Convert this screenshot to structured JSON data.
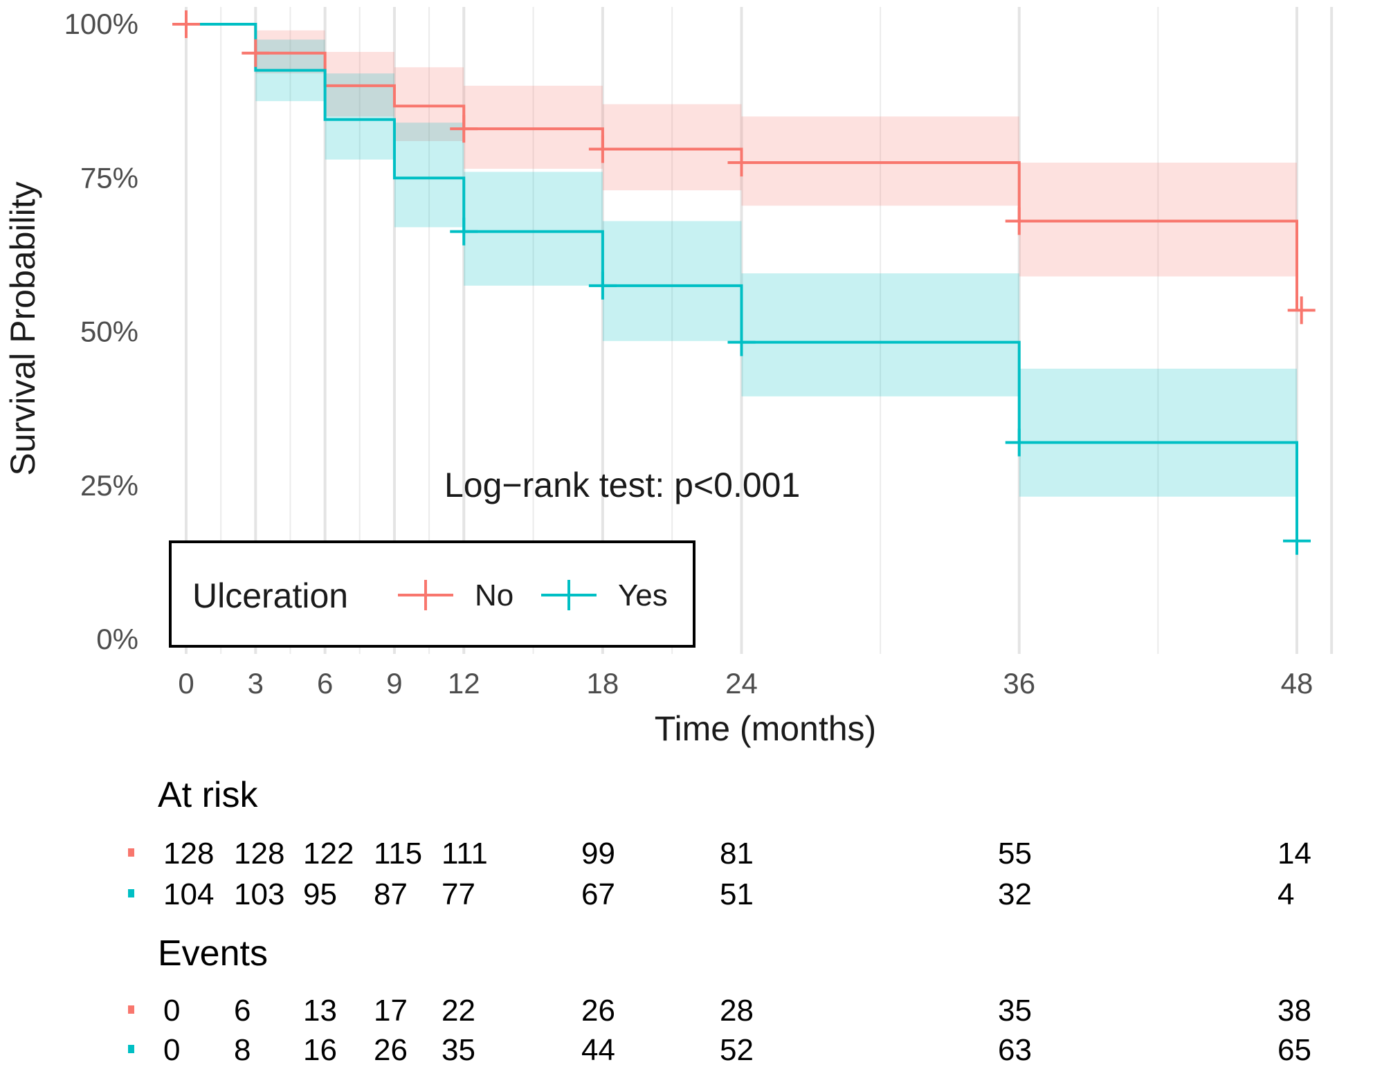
{
  "chart_data": {
    "type": "line",
    "subtype": "kaplan-meier",
    "xlabel": "Time (months)",
    "ylabel": "Survival Probability",
    "xlim": [
      0,
      48
    ],
    "ylim": [
      0,
      1
    ],
    "x_ticks": [
      0,
      3,
      6,
      9,
      12,
      18,
      24,
      36,
      48
    ],
    "y_ticks": [
      0,
      0.25,
      0.5,
      0.75,
      1.0
    ],
    "y_tick_labels": [
      "0%",
      "25%",
      "50%",
      "75%",
      "100%"
    ],
    "annotation": "Log−rank test: p<0.001",
    "legend": {
      "title": "Ulceration",
      "position": "bottom-left"
    },
    "series": [
      {
        "name": "No",
        "color": "#F8766D",
        "band_color": "#FFDCDC",
        "steps": [
          {
            "t0": 0,
            "t1": 3,
            "s": 1.0,
            "lo": 1.0,
            "hi": 1.0
          },
          {
            "t0": 3,
            "t1": 6,
            "s": 0.953,
            "lo": 0.92,
            "hi": 0.99
          },
          {
            "t0": 6,
            "t1": 9,
            "s": 0.9,
            "lo": 0.85,
            "hi": 0.955
          },
          {
            "t0": 9,
            "t1": 12,
            "s": 0.867,
            "lo": 0.81,
            "hi": 0.93
          },
          {
            "t0": 12,
            "t1": 18,
            "s": 0.83,
            "lo": 0.765,
            "hi": 0.9
          },
          {
            "t0": 18,
            "t1": 24,
            "s": 0.797,
            "lo": 0.73,
            "hi": 0.87
          },
          {
            "t0": 24,
            "t1": 36,
            "s": 0.775,
            "lo": 0.705,
            "hi": 0.85
          },
          {
            "t0": 36,
            "t1": 48,
            "s": 0.68,
            "lo": 0.59,
            "hi": 0.775
          }
        ],
        "censor_marks": [
          {
            "t": 0,
            "s": 1.0
          },
          {
            "t": 3,
            "s": 0.953
          },
          {
            "t": 12,
            "s": 0.83
          },
          {
            "t": 18,
            "s": 0.797
          },
          {
            "t": 24,
            "s": 0.775
          },
          {
            "t": 36,
            "s": 0.68
          },
          {
            "t": 48.2,
            "s": 0.535
          }
        ],
        "at_risk": [
          128,
          128,
          122,
          115,
          111,
          99,
          81,
          55,
          14
        ],
        "events": [
          0,
          6,
          13,
          17,
          22,
          26,
          28,
          35,
          38
        ]
      },
      {
        "name": "Yes",
        "color": "#00BFC4",
        "band_color": "#C5EEEF",
        "steps": [
          {
            "t0": 0,
            "t1": 3,
            "s": 1.0,
            "lo": 1.0,
            "hi": 1.0
          },
          {
            "t0": 3,
            "t1": 6,
            "s": 0.925,
            "lo": 0.875,
            "hi": 0.975
          },
          {
            "t0": 6,
            "t1": 9,
            "s": 0.845,
            "lo": 0.78,
            "hi": 0.92
          },
          {
            "t0": 9,
            "t1": 12,
            "s": 0.75,
            "lo": 0.67,
            "hi": 0.84
          },
          {
            "t0": 12,
            "t1": 18,
            "s": 0.663,
            "lo": 0.575,
            "hi": 0.76
          },
          {
            "t0": 18,
            "t1": 24,
            "s": 0.575,
            "lo": 0.485,
            "hi": 0.68
          },
          {
            "t0": 24,
            "t1": 36,
            "s": 0.483,
            "lo": 0.395,
            "hi": 0.595
          },
          {
            "t0": 36,
            "t1": 48,
            "s": 0.32,
            "lo": 0.232,
            "hi": 0.44
          }
        ],
        "censor_marks": [
          {
            "t": 12,
            "s": 0.663
          },
          {
            "t": 18,
            "s": 0.575
          },
          {
            "t": 24,
            "s": 0.483
          },
          {
            "t": 36,
            "s": 0.32
          },
          {
            "t": 48,
            "s": 0.16
          }
        ],
        "at_risk": [
          104,
          103,
          95,
          87,
          77,
          67,
          51,
          32,
          4
        ],
        "events": [
          0,
          8,
          16,
          26,
          35,
          44,
          52,
          63,
          65
        ]
      }
    ],
    "risk_table": {
      "at_risk_title": "At risk",
      "events_title": "Events",
      "times": [
        0,
        3,
        6,
        9,
        12,
        18,
        24,
        36,
        48
      ]
    }
  }
}
